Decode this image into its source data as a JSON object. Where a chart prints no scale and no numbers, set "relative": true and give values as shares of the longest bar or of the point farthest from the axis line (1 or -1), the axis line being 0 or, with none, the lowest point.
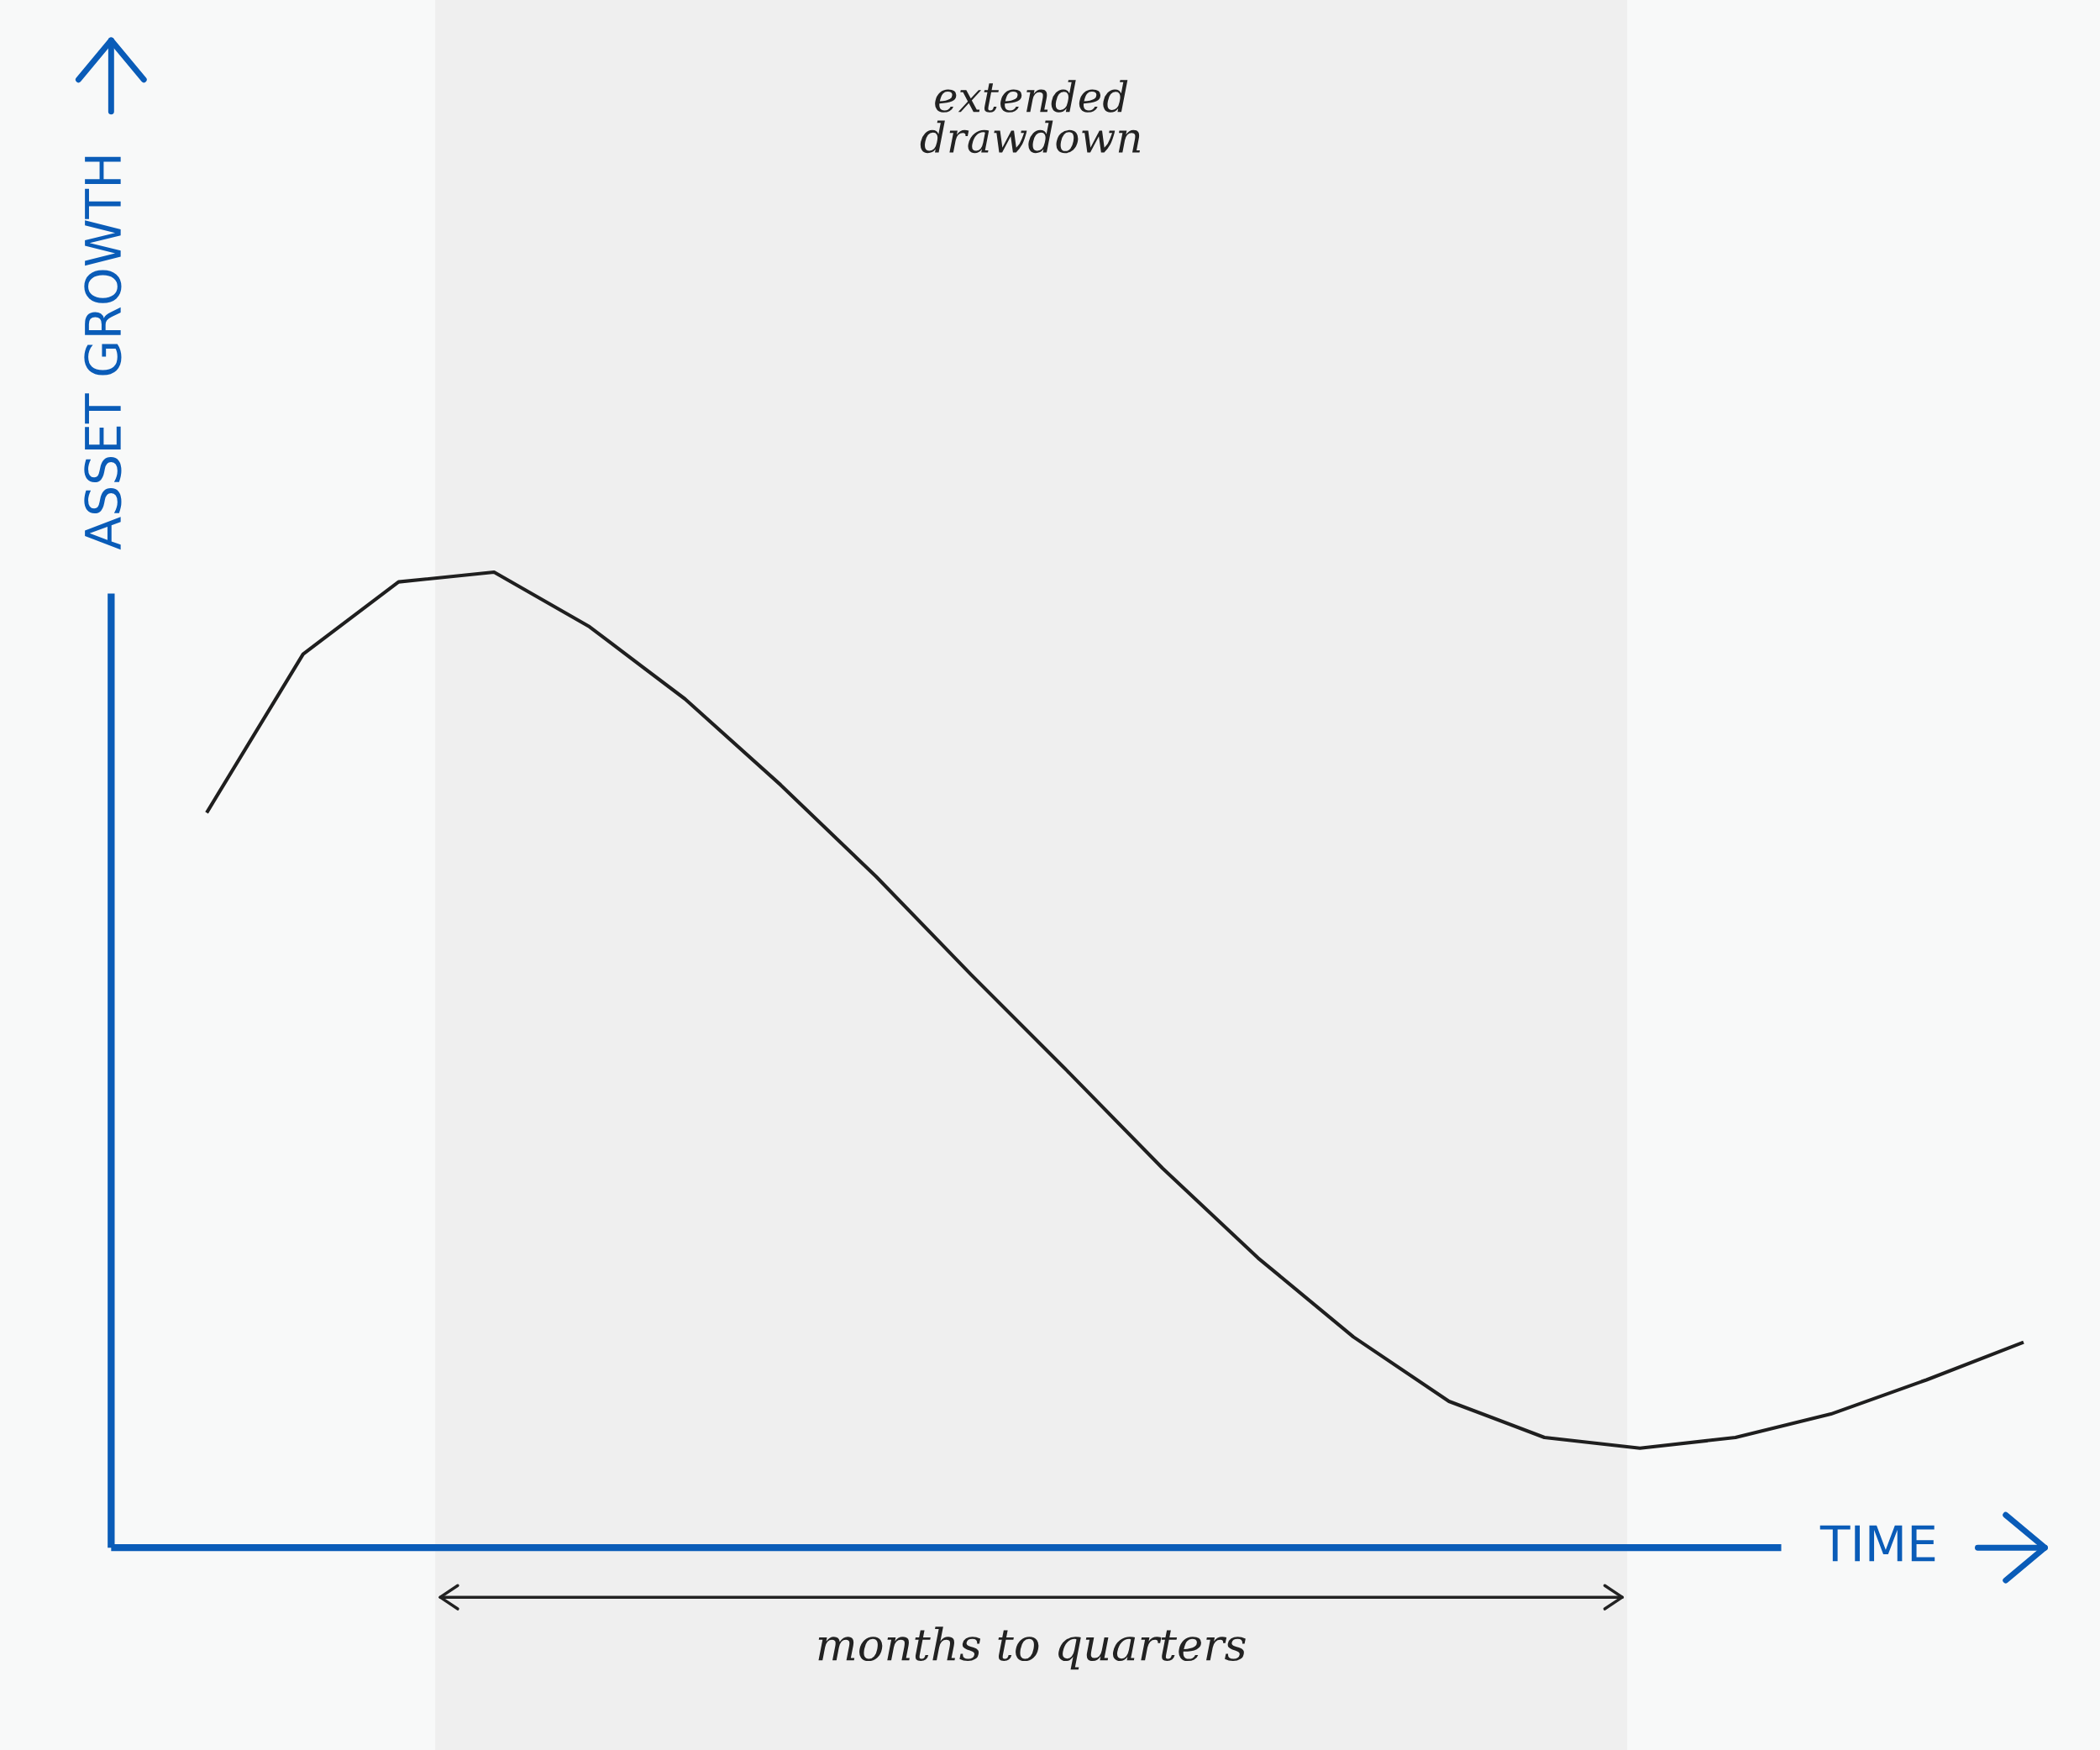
{
  "chart_data": {
    "type": "line",
    "relative": true,
    "xlabel": "TIME",
    "ylabel": "ASSET GROWTH",
    "categories": [
      null,
      null,
      null,
      null,
      null,
      null,
      null,
      null,
      null,
      null,
      null,
      null,
      null,
      null,
      null,
      null,
      null,
      null,
      null,
      null
    ],
    "series": [
      {
        "color": "#1f1f1f",
        "values": [
          0.755,
          0.916,
          0.99,
          1.0,
          0.944,
          0.87,
          0.782,
          0.688,
          0.587,
          0.489,
          0.389,
          0.297,
          0.216,
          0.15,
          0.113,
          0.102,
          0.113,
          0.137,
          0.172,
          0.21
        ]
      }
    ],
    "annotations": [
      "extended\ndrawdown",
      "months to quarters"
    ],
    "marker": "none",
    "line_style": "solid"
  }
}
